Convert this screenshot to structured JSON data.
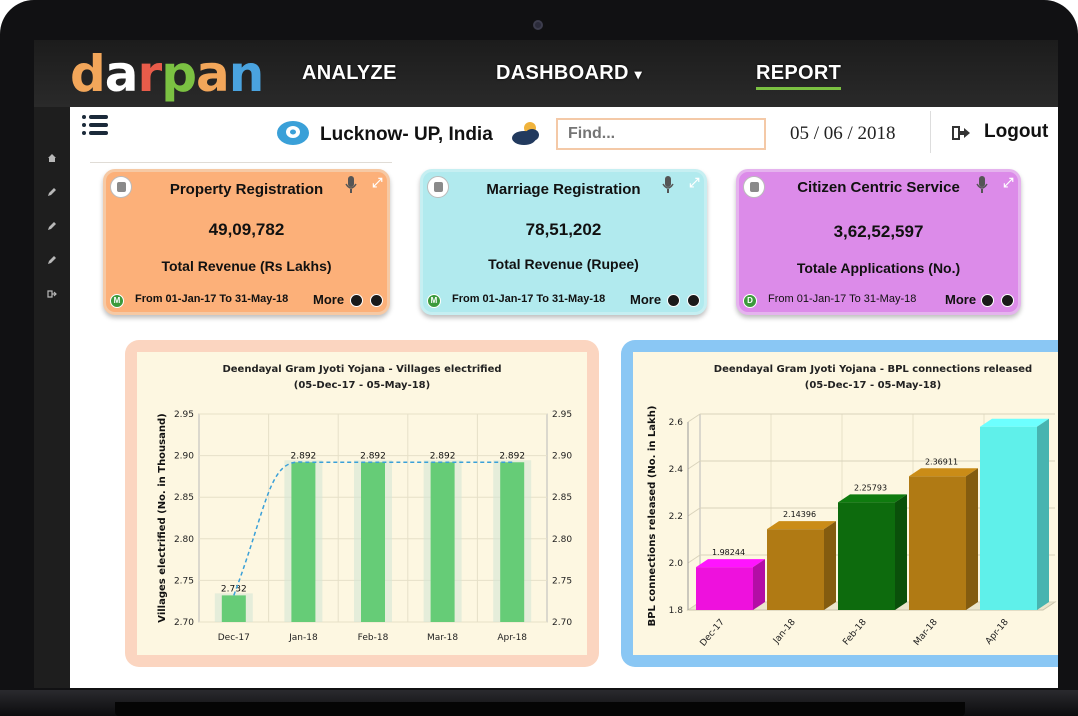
{
  "app": {
    "logo_letters": [
      "d",
      "a",
      "r",
      "p",
      "a",
      "n"
    ],
    "logo_colors": [
      "#f2a65a",
      "#ffffff",
      "#e85c4a",
      "#7bc142",
      "#f2a65a",
      "#4aa3df"
    ]
  },
  "nav": {
    "analyze": "ANALYZE",
    "dashboard": "DASHBOARD",
    "dashboard_caret": "▾",
    "report": "REPORT"
  },
  "header": {
    "location": "Lucknow- UP, India",
    "search_placeholder": "Find...",
    "date": "05 / 06 / 2018",
    "logout": "Logout"
  },
  "cards": [
    {
      "title": "Property Registration",
      "value": "49,09,782",
      "label": "Total Revenue (Rs Lakhs)",
      "range": "From 01-Jan-17 To 31-May-18",
      "more": "More",
      "go_letter": "M",
      "color": "#fcb079"
    },
    {
      "title": "Marriage Registration",
      "value": "78,51,202",
      "label": "Total Revenue (Rupee)",
      "range": "From 01-Jan-17 To 31-May-18",
      "more": "More",
      "go_letter": "M",
      "color": "#b1eaee"
    },
    {
      "title": "Citizen Centric Service",
      "value": "3,62,52,597",
      "label": "Totale Applications (No.)",
      "range": "From 01-Jan-17 To 31-May-18",
      "more": "More",
      "go_letter": "D",
      "color": "#dc8be9"
    }
  ],
  "chart_data": [
    {
      "type": "bar",
      "title": "Deendayal Gram Jyoti Yojana - Villages electrified",
      "subtitle": "(05-Dec-17 - 05-May-18)",
      "xlabel": "",
      "ylabel": "Villages electrified (No. in Thousand)",
      "categories": [
        "Dec-17",
        "Jan-18",
        "Feb-18",
        "Mar-18",
        "Apr-18"
      ],
      "values": [
        2.732,
        2.892,
        2.892,
        2.892,
        2.892
      ],
      "data_labels": [
        "2.732",
        "2.892",
        "2.892",
        "2.892",
        "2.892"
      ],
      "ylim": [
        2.7,
        2.95
      ],
      "yticks": [
        "2.95",
        "2.90",
        "2.85",
        "2.80",
        "2.75",
        "2.70"
      ],
      "secondary_axis": true,
      "overlay_line": "dashed-spline",
      "bar_color": "#66cc77",
      "line_color": "#3aa0d8",
      "grid": true
    },
    {
      "type": "bar",
      "title": "Deendayal Gram Jyoti Yojana - BPL connections released",
      "subtitle": "(05-Dec-17 - 05-May-18)",
      "xlabel": "",
      "ylabel": "BPL connections released (No. in Lakh)",
      "categories": [
        "Dec-17",
        "Jan-18",
        "Feb-18",
        "Mar-18",
        "Apr-18"
      ],
      "values": [
        1.98244,
        2.14396,
        2.25793,
        2.36911,
        2.58
      ],
      "data_labels": [
        "1.98244",
        "2.14396",
        "2.25793",
        "2.36911",
        ""
      ],
      "ylim": [
        1.8,
        2.6
      ],
      "yticks": [
        "2.6",
        "2.4",
        "2.2",
        "2.0",
        "1.8"
      ],
      "colors": [
        "#ee11dd",
        "#b07a14",
        "#0d6b0d",
        "#b07a14",
        "#5ff0ea"
      ],
      "style": "3d",
      "grid": true
    }
  ]
}
